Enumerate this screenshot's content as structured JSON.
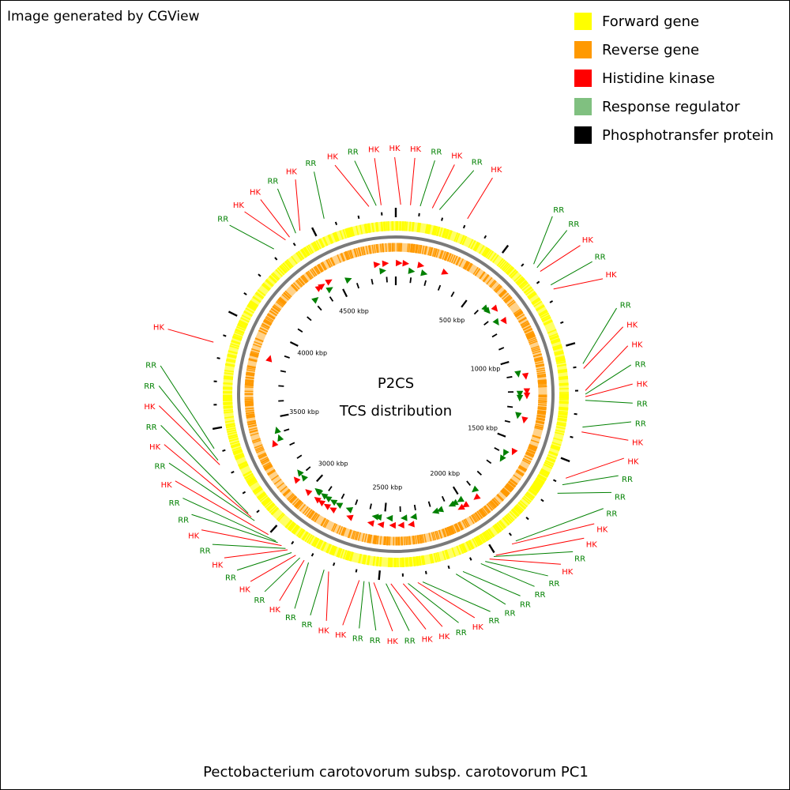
{
  "credit": "Image generated by CGView",
  "title_line1": "P2CS",
  "title_line2": "TCS distribution",
  "organism": "Pectobacterium carotovorum subsp. carotovorum PC1",
  "colors": {
    "forward": "#ffff00",
    "reverse": "#ff9900",
    "hk": "#ff0000",
    "rr": "#008000",
    "rr_legend": "#80c080",
    "pt": "#000000",
    "backbone": "#7a7a7a"
  },
  "legend": [
    {
      "label": "Forward gene",
      "color": "#ffff00"
    },
    {
      "label": "Reverse gene",
      "color": "#ff9900"
    },
    {
      "label": "Histidine kinase",
      "color": "#ff0000"
    },
    {
      "label": "Response regulator",
      "color": "#80c080"
    },
    {
      "label": "Phosphotransfer protein",
      "color": "#000000"
    }
  ],
  "map": {
    "genome_length_kbp": 4860,
    "tick_labels": [
      {
        "kbp": 500,
        "text": "500 kbp"
      },
      {
        "kbp": 1000,
        "text": "1000 kbp"
      },
      {
        "kbp": 1500,
        "text": "1500 kbp"
      },
      {
        "kbp": 2000,
        "text": "2000 kbp"
      },
      {
        "kbp": 2500,
        "text": "2500 kbp"
      },
      {
        "kbp": 3000,
        "text": "3000 kbp"
      },
      {
        "kbp": 3500,
        "text": "3500 kbp"
      },
      {
        "kbp": 4000,
        "text": "4000 kbp"
      },
      {
        "kbp": 4500,
        "text": "4500 kbp"
      }
    ],
    "features": [
      {
        "kbp": 20,
        "type": "HK"
      },
      {
        "kbp": 60,
        "type": "HK"
      },
      {
        "kbp": 100,
        "type": "RR"
      },
      {
        "kbp": 150,
        "type": "HK"
      },
      {
        "kbp": 180,
        "type": "RR"
      },
      {
        "kbp": 300,
        "type": "HK"
      },
      {
        "kbp": 630,
        "type": "RR"
      },
      {
        "kbp": 650,
        "type": "RR"
      },
      {
        "kbp": 670,
        "type": "HK"
      },
      {
        "kbp": 740,
        "type": "RR"
      },
      {
        "kbp": 760,
        "type": "HK"
      },
      {
        "kbp": 1090,
        "type": "RR"
      },
      {
        "kbp": 1110,
        "type": "HK"
      },
      {
        "kbp": 1200,
        "type": "HK"
      },
      {
        "kbp": 1215,
        "type": "RR"
      },
      {
        "kbp": 1225,
        "type": "HK"
      },
      {
        "kbp": 1240,
        "type": "RR"
      },
      {
        "kbp": 1350,
        "type": "RR"
      },
      {
        "kbp": 1370,
        "type": "HK"
      },
      {
        "kbp": 1570,
        "type": "HK"
      },
      {
        "kbp": 1600,
        "type": "RR"
      },
      {
        "kbp": 1640,
        "type": "RR"
      },
      {
        "kbp": 1900,
        "type": "RR"
      },
      {
        "kbp": 1920,
        "type": "HK"
      },
      {
        "kbp": 2000,
        "type": "HK"
      },
      {
        "kbp": 2010,
        "type": "RR"
      },
      {
        "kbp": 2030,
        "type": "HK"
      },
      {
        "kbp": 2050,
        "type": "RR"
      },
      {
        "kbp": 2070,
        "type": "RR"
      },
      {
        "kbp": 2150,
        "type": "RR"
      },
      {
        "kbp": 2180,
        "type": "RR"
      },
      {
        "kbp": 2320,
        "type": "RR"
      },
      {
        "kbp": 2340,
        "type": "HK"
      },
      {
        "kbp": 2380,
        "type": "RR"
      },
      {
        "kbp": 2400,
        "type": "HK"
      },
      {
        "kbp": 2450,
        "type": "HK"
      },
      {
        "kbp": 2470,
        "type": "RR"
      },
      {
        "kbp": 2520,
        "type": "HK"
      },
      {
        "kbp": 2540,
        "type": "RR"
      },
      {
        "kbp": 2560,
        "type": "RR"
      },
      {
        "kbp": 2580,
        "type": "HK"
      },
      {
        "kbp": 2710,
        "type": "HK"
      },
      {
        "kbp": 2730,
        "type": "RR"
      },
      {
        "kbp": 2800,
        "type": "RR"
      },
      {
        "kbp": 2820,
        "type": "HK"
      },
      {
        "kbp": 2840,
        "type": "RR"
      },
      {
        "kbp": 2860,
        "type": "HK"
      },
      {
        "kbp": 2880,
        "type": "RR"
      },
      {
        "kbp": 2900,
        "type": "HK"
      },
      {
        "kbp": 2910,
        "type": "RR"
      },
      {
        "kbp": 2930,
        "type": "HK"
      },
      {
        "kbp": 2950,
        "type": "RR"
      },
      {
        "kbp": 2960,
        "type": "RR"
      },
      {
        "kbp": 3000,
        "type": "HK"
      },
      {
        "kbp": 3080,
        "type": "RR"
      },
      {
        "kbp": 3100,
        "type": "HK"
      },
      {
        "kbp": 3120,
        "type": "RR"
      },
      {
        "kbp": 3350,
        "type": "HK"
      },
      {
        "kbp": 3370,
        "type": "RR"
      },
      {
        "kbp": 3420,
        "type": "RR"
      },
      {
        "kbp": 3860,
        "type": "HK"
      },
      {
        "kbp": 4320,
        "type": "RR"
      },
      {
        "kbp": 4380,
        "type": "HK"
      },
      {
        "kbp": 4400,
        "type": "HK"
      },
      {
        "kbp": 4430,
        "type": "RR"
      },
      {
        "kbp": 4450,
        "type": "HK"
      },
      {
        "kbp": 4560,
        "type": "RR"
      },
      {
        "kbp": 4750,
        "type": "HK"
      },
      {
        "kbp": 4780,
        "type": "RR"
      },
      {
        "kbp": 4800,
        "type": "HK"
      }
    ]
  }
}
